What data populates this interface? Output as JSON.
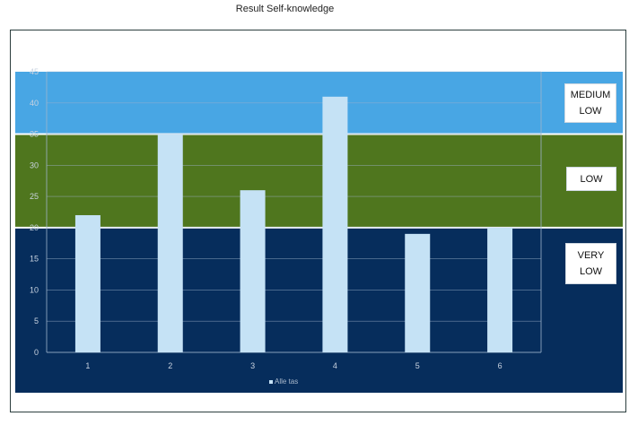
{
  "chart_data": {
    "type": "bar",
    "title": "Result Self-knowledge",
    "categories": [
      "1",
      "2",
      "3",
      "4",
      "5",
      "6"
    ],
    "series": [
      {
        "name": "Alle tas",
        "values": [
          22,
          35,
          26,
          41,
          19,
          20
        ]
      }
    ],
    "ylim": [
      0,
      45
    ],
    "yticks": [
      0,
      5,
      10,
      15,
      20,
      25,
      30,
      35,
      40,
      45
    ],
    "grid": true,
    "legend_position": "bottom",
    "bands": [
      {
        "label_lines": [
          "VERY",
          "LOW"
        ],
        "from": 0,
        "to": 20,
        "color": "#062d5c"
      },
      {
        "label_lines": [
          "LOW"
        ],
        "from": 20,
        "to": 35,
        "color": "#4f761e"
      },
      {
        "label_lines": [
          "MEDIUM",
          "LOW"
        ],
        "from": 35,
        "to": 45,
        "color": "#48a6e4"
      }
    ],
    "bar_color": "#c5e2f5"
  }
}
